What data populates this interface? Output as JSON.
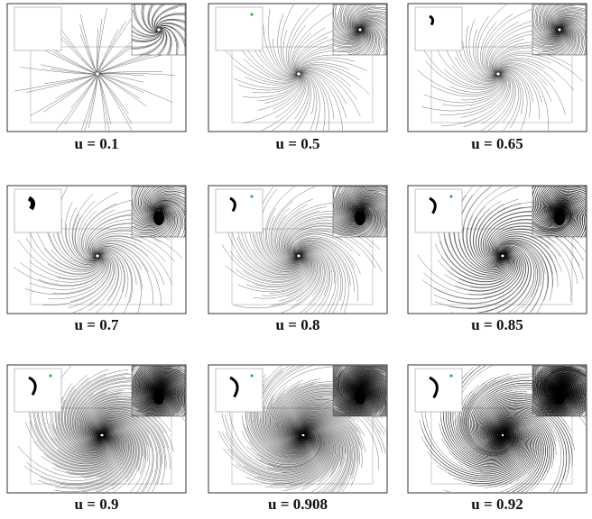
{
  "panels": [
    {
      "caption": "u = 0.1"
    },
    {
      "caption": "u = 0.5"
    },
    {
      "caption": "u = 0.65"
    },
    {
      "caption": "u = 0.7"
    },
    {
      "caption": "u = 0.8"
    },
    {
      "caption": "u = 0.85"
    },
    {
      "caption": "u = 0.9"
    },
    {
      "caption": "u = 0.908"
    },
    {
      "caption": "u = 0.92"
    }
  ]
}
